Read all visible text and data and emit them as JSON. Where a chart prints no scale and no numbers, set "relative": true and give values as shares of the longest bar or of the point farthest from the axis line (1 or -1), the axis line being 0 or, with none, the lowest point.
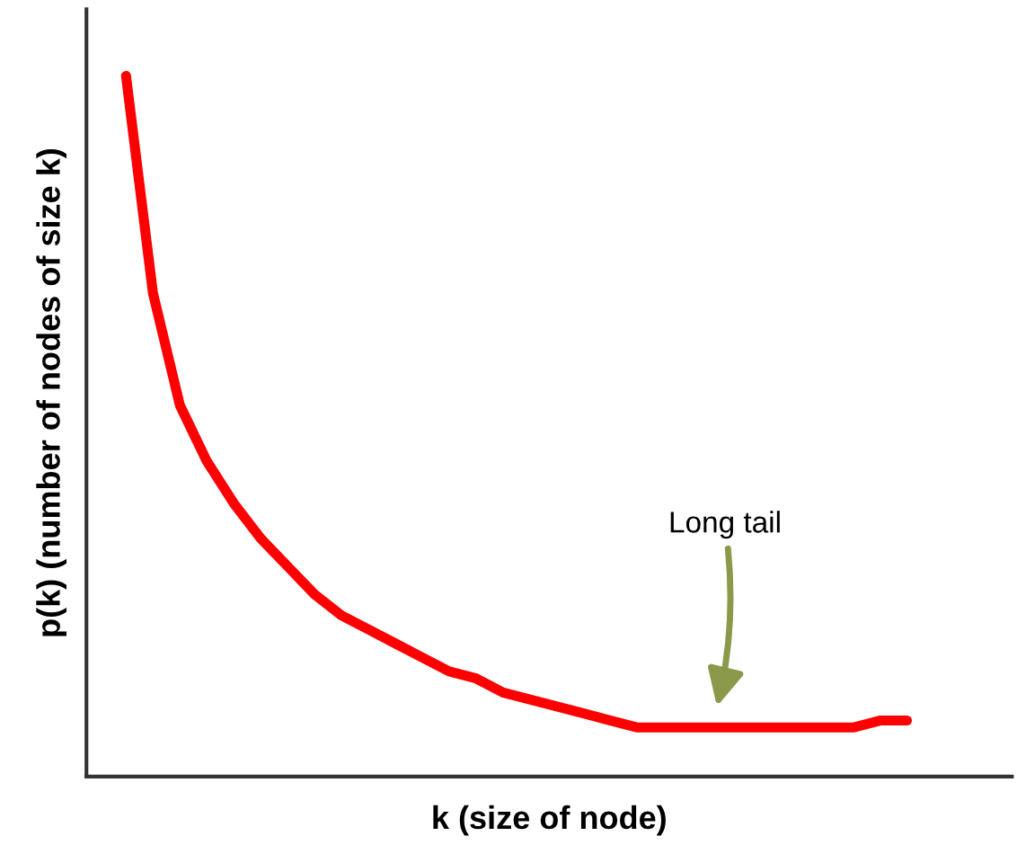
{
  "chart_data": {
    "type": "line",
    "relative": true,
    "xlabel": "k (size of node)",
    "ylabel": "p(k) (number of nodes of size k)",
    "categories": [
      null,
      null,
      null,
      null,
      null,
      null,
      null,
      null,
      null,
      null,
      null,
      null,
      null,
      null,
      null,
      null,
      null,
      null,
      null,
      null,
      null,
      null,
      null,
      null,
      null,
      null,
      null,
      null,
      null,
      null
    ],
    "series": [
      {
        "color": "#ff0000",
        "values": [
          1.0,
          0.69,
          0.53,
          0.45,
          0.39,
          0.34,
          0.3,
          0.26,
          0.23,
          0.21,
          0.19,
          0.17,
          0.15,
          0.14,
          0.12,
          0.11,
          0.1,
          0.09,
          0.08,
          0.07,
          0.07,
          0.07,
          0.07,
          0.07,
          0.07,
          0.07,
          0.07,
          0.07,
          0.08,
          0.08
        ]
      }
    ],
    "annotations": [
      "Long tail"
    ],
    "marker": "none",
    "line_style": "solid",
    "grid": false,
    "legend": false
  }
}
